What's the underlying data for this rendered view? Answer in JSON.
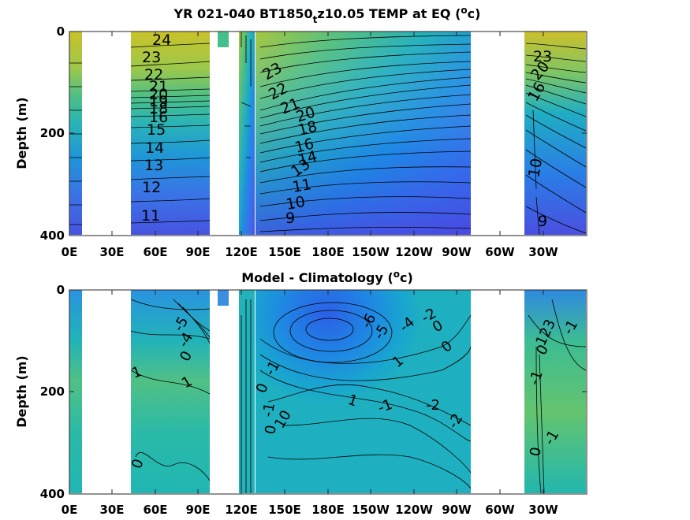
{
  "chart_data": [
    {
      "type": "heatmap",
      "title": "YR 021-040 BT1850",
      "title_sub": "t",
      "title_rest": "z10.05 TEMP at EQ (",
      "title_unit_sup": "o",
      "title_unit_end": "c)",
      "ylabel": "Depth (m)",
      "xlabel": "",
      "ylim": [
        400,
        0
      ],
      "x_tick_labels": [
        "0E",
        "30E",
        "60E",
        "90E",
        "120E",
        "150E",
        "180E",
        "150W",
        "120W",
        "90W",
        "60W",
        "30W"
      ],
      "y_tick_labels": [
        "0",
        "200",
        "400"
      ],
      "colormap": "parula",
      "contour_labels": [
        {
          "lon": "Indian Ocean",
          "depth": 15,
          "value": "24"
        },
        {
          "lon": "Indian Ocean",
          "depth": 45,
          "value": "23"
        },
        {
          "lon": "Indian Ocean",
          "depth": 80,
          "value": "22"
        },
        {
          "lon": "Indian Ocean",
          "depth": 110,
          "value": "21"
        },
        {
          "lon": "Indian Ocean",
          "depth": 125,
          "value": "20"
        },
        {
          "lon": "Indian Ocean",
          "depth": 135,
          "value": "19"
        },
        {
          "lon": "Indian Ocean",
          "depth": 145,
          "value": "18"
        },
        {
          "lon": "Indian Ocean",
          "depth": 165,
          "value": "16"
        },
        {
          "lon": "Indian Ocean",
          "depth": 190,
          "value": "15"
        },
        {
          "lon": "Indian Ocean",
          "depth": 225,
          "value": "14"
        },
        {
          "lon": "Indian Ocean",
          "depth": 260,
          "value": "13"
        },
        {
          "lon": "Indian Ocean",
          "depth": 305,
          "value": "12"
        },
        {
          "lon": "Indian Ocean",
          "depth": 360,
          "value": "11"
        },
        {
          "lon": "West Pacific",
          "depth": 80,
          "value": "23"
        },
        {
          "lon": "West Pacific",
          "depth": 115,
          "value": "22"
        },
        {
          "lon": "West Pacific",
          "depth": 145,
          "value": "21"
        },
        {
          "lon": "West Pacific",
          "depth": 160,
          "value": "20"
        },
        {
          "lon": "West Pacific",
          "depth": 185,
          "value": "18"
        },
        {
          "lon": "West Pacific",
          "depth": 220,
          "value": "16"
        },
        {
          "lon": "West Pacific",
          "depth": 240,
          "value": "14"
        },
        {
          "lon": "West Pacific",
          "depth": 265,
          "value": "13"
        },
        {
          "lon": "West Pacific",
          "depth": 300,
          "value": "11"
        },
        {
          "lon": "West Pacific",
          "depth": 335,
          "value": "10"
        },
        {
          "lon": "West Pacific",
          "depth": 360,
          "value": "9"
        },
        {
          "lon": "Atlantic",
          "depth": 50,
          "value": "23"
        },
        {
          "lon": "Atlantic",
          "depth": 95,
          "value": "20"
        },
        {
          "lon": "Atlantic",
          "depth": 130,
          "value": "16"
        },
        {
          "lon": "Atlantic",
          "depth": 230,
          "value": "10"
        },
        {
          "lon": "Atlantic",
          "depth": 340,
          "value": "9"
        }
      ]
    },
    {
      "type": "heatmap",
      "title": "Model - Climatology (",
      "title_unit_sup": "o",
      "title_unit_end": "c)",
      "ylabel": "Depth (m)",
      "xlabel": "",
      "ylim": [
        400,
        0
      ],
      "x_tick_labels": [
        "0E",
        "30E",
        "60E",
        "90E",
        "120E",
        "150E",
        "180E",
        "150W",
        "120W",
        "90W",
        "60W",
        "30W"
      ],
      "y_tick_labels": [
        "0",
        "200",
        "400"
      ],
      "colormap": "parula",
      "contour_labels": [
        {
          "lon": "Indian Ocean",
          "depth": 150,
          "value": "1"
        },
        {
          "lon": "Indian Ocean",
          "depth": 180,
          "value": "1"
        },
        {
          "lon": "Indian Ocean",
          "depth": 340,
          "value": "0"
        },
        {
          "lon": "Indian Ocean",
          "depth": 70,
          "value": "-5"
        },
        {
          "lon": "Indian Ocean",
          "depth": 100,
          "value": "-4"
        },
        {
          "lon": "Indian Ocean",
          "depth": 115,
          "value": "0"
        },
        {
          "lon": "West Pacific",
          "depth": 160,
          "value": "-1"
        },
        {
          "lon": "West Pacific",
          "depth": 180,
          "value": "0"
        },
        {
          "lon": "West Pacific",
          "depth": 220,
          "value": "-1"
        },
        {
          "lon": "West Pacific",
          "depth": 240,
          "value": "0"
        },
        {
          "lon": "West Pacific",
          "depth": 270,
          "value": "10"
        },
        {
          "lon": "Central Pacific",
          "depth": 60,
          "value": "-6"
        },
        {
          "lon": "Central Pacific",
          "depth": 85,
          "value": "-5"
        },
        {
          "lon": "Central Pacific",
          "depth": 70,
          "value": "-4"
        },
        {
          "lon": "Central Pacific",
          "depth": 50,
          "value": "-2"
        },
        {
          "lon": "Central Pacific",
          "depth": 70,
          "value": "0"
        },
        {
          "lon": "Central Pacific",
          "depth": 140,
          "value": "0"
        },
        {
          "lon": "Central Pacific",
          "depth": 140,
          "value": "1"
        },
        {
          "lon": "Central Pacific",
          "depth": 210,
          "value": "1"
        },
        {
          "lon": "Central Pacific",
          "depth": 220,
          "value": "-1"
        },
        {
          "lon": "East Pacific",
          "depth": 220,
          "value": "-2"
        },
        {
          "lon": "East Pacific",
          "depth": 240,
          "value": "-2"
        },
        {
          "lon": "Atlantic",
          "depth": 70,
          "value": "123"
        },
        {
          "lon": "Atlantic",
          "depth": 70,
          "value": "-1"
        },
        {
          "lon": "Atlantic",
          "depth": 110,
          "value": "0"
        },
        {
          "lon": "Atlantic",
          "depth": 170,
          "value": "-1"
        },
        {
          "lon": "Atlantic",
          "depth": 310,
          "value": "0"
        },
        {
          "lon": "Atlantic",
          "depth": 300,
          "value": "-1"
        }
      ]
    }
  ]
}
